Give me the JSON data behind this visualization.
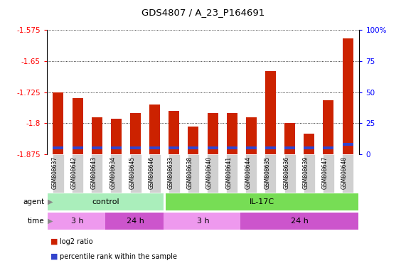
{
  "title": "GDS4807 / A_23_P164691",
  "samples": [
    "GSM808637",
    "GSM808642",
    "GSM808643",
    "GSM808634",
    "GSM808645",
    "GSM808646",
    "GSM808633",
    "GSM808638",
    "GSM808640",
    "GSM808641",
    "GSM808644",
    "GSM808635",
    "GSM808636",
    "GSM808639",
    "GSM808647",
    "GSM808648"
  ],
  "log2_ratio": [
    -1.725,
    -1.74,
    -1.785,
    -1.79,
    -1.775,
    -1.755,
    -1.77,
    -1.808,
    -1.775,
    -1.775,
    -1.785,
    -1.675,
    -1.8,
    -1.825,
    -1.745,
    -1.595
  ],
  "percentile_rank": [
    5,
    5,
    5,
    5,
    5,
    5,
    5,
    5,
    5,
    5,
    5,
    5,
    5,
    5,
    5,
    8
  ],
  "ymin": -1.875,
  "ymax": -1.575,
  "yticks": [
    -1.875,
    -1.8,
    -1.725,
    -1.65,
    -1.575
  ],
  "right_yticks": [
    0,
    25,
    50,
    75,
    100
  ],
  "bar_color": "#cc2200",
  "blue_color": "#3344cc",
  "agent_control_color": "#aaeebb",
  "agent_il17c_color": "#77dd55",
  "time_3h_color": "#ee99ee",
  "time_24h_color": "#cc55cc",
  "control_count": 6,
  "il17c_count": 10,
  "time_spans": [
    [
      0,
      2,
      "3 h",
      "3h"
    ],
    [
      3,
      5,
      "24 h",
      "24h"
    ],
    [
      6,
      9,
      "3 h",
      "3h"
    ],
    [
      10,
      15,
      "24 h",
      "24h"
    ]
  ]
}
